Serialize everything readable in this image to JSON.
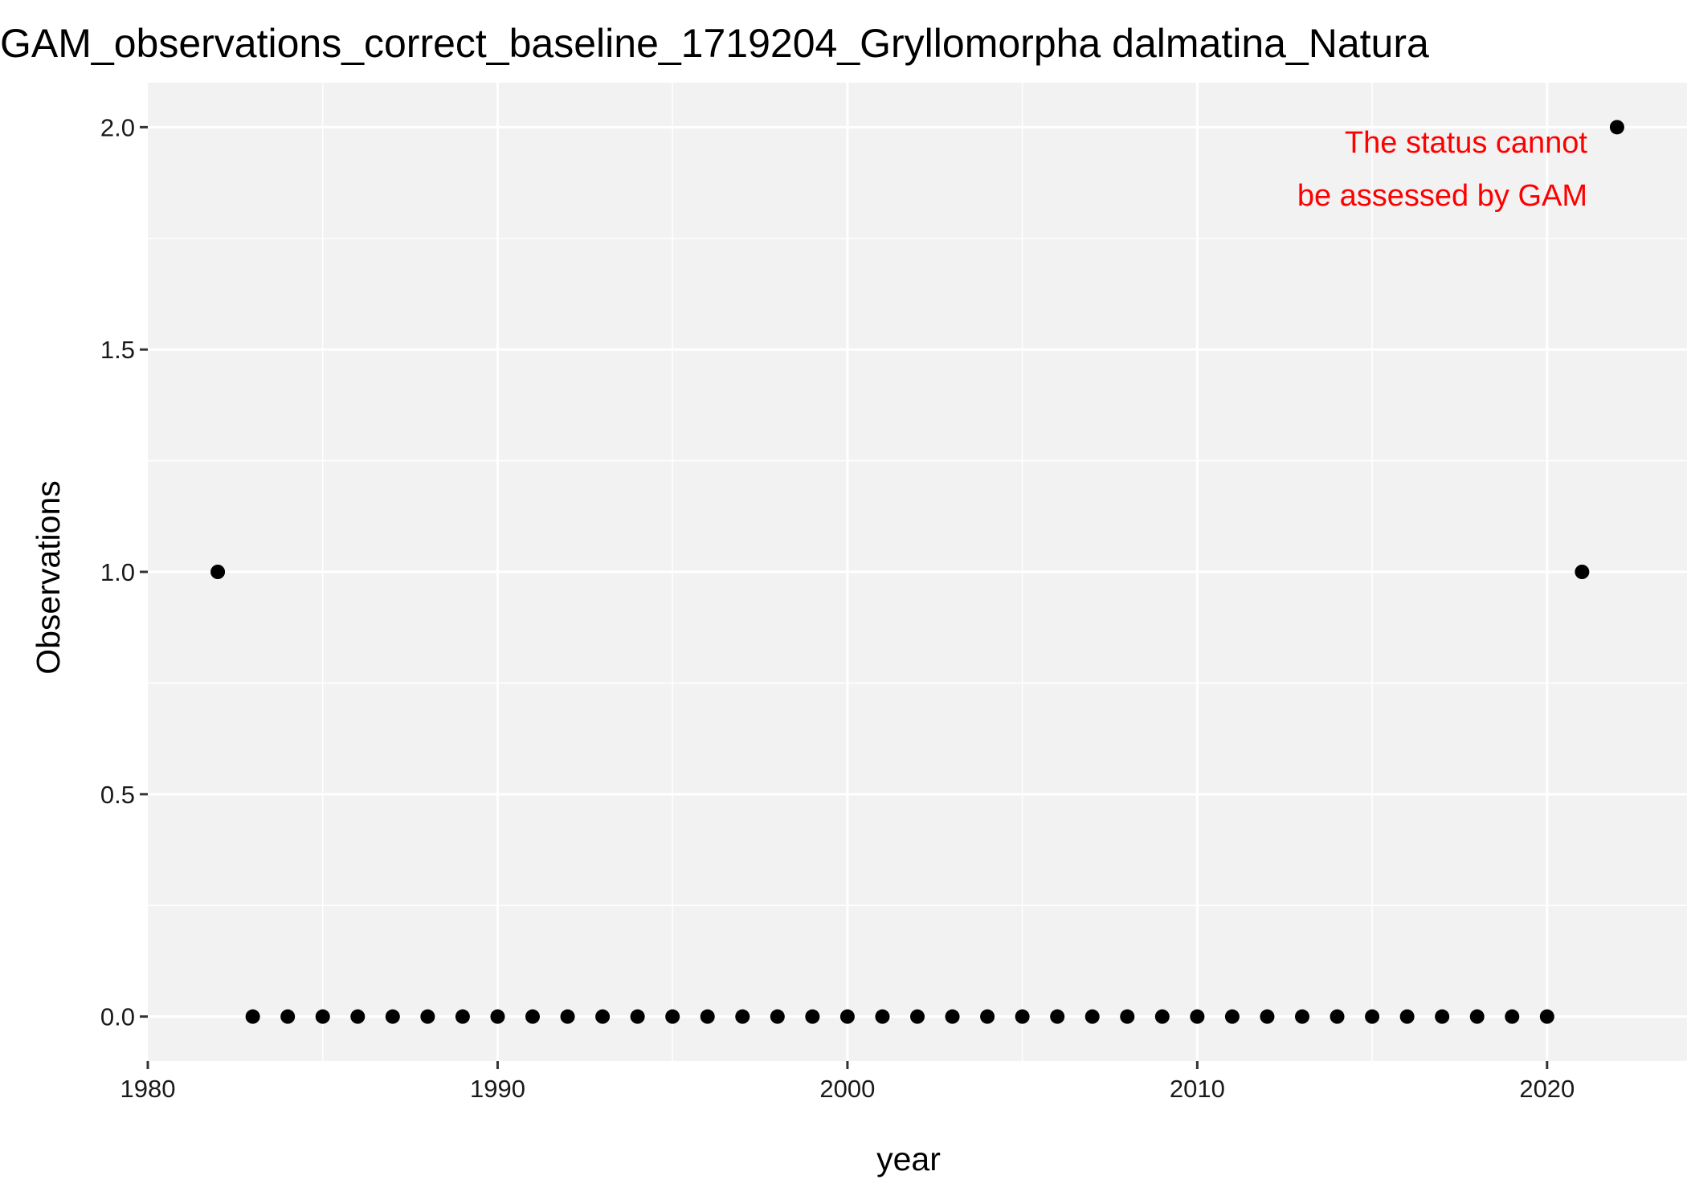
{
  "chart_data": {
    "type": "scatter",
    "title": "GAM_observations_correct_baseline_1719204_Gryllomorpha dalmatina_Natura",
    "xlabel": "year",
    "ylabel": "Observations",
    "xlim": [
      1980,
      2024
    ],
    "ylim": [
      -0.1,
      2.1
    ],
    "x_ticks": [
      1980,
      1990,
      2000,
      2010,
      2020
    ],
    "x_tick_labels": [
      "1980",
      "1990",
      "2000",
      "2010",
      "2020"
    ],
    "y_ticks": [
      0.0,
      0.5,
      1.0,
      1.5,
      2.0
    ],
    "y_tick_labels": [
      "0.0",
      "0.5",
      "1.0",
      "1.5",
      "2.0"
    ],
    "grid": true,
    "legend": "none",
    "series": [
      {
        "x": [
          1982,
          1983,
          1984,
          1985,
          1986,
          1987,
          1988,
          1989,
          1990,
          1991,
          1992,
          1993,
          1994,
          1995,
          1996,
          1997,
          1998,
          1999,
          2000,
          2001,
          2002,
          2003,
          2004,
          2005,
          2006,
          2007,
          2008,
          2009,
          2010,
          2011,
          2012,
          2013,
          2014,
          2015,
          2016,
          2017,
          2018,
          2019,
          2020,
          2021,
          2022
        ],
        "y": [
          1,
          0,
          0,
          0,
          0,
          0,
          0,
          0,
          0,
          0,
          0,
          0,
          0,
          0,
          0,
          0,
          0,
          0,
          0,
          0,
          0,
          0,
          0,
          0,
          0,
          0,
          0,
          0,
          0,
          0,
          0,
          0,
          0,
          0,
          0,
          0,
          0,
          0,
          0,
          1,
          2
        ]
      }
    ],
    "annotation": {
      "lines": [
        "The status cannot",
        "be assessed by GAM"
      ],
      "color": "#ff0000"
    },
    "colors": {
      "panel_background": "#f2f2f2",
      "grid": "#ffffff",
      "points": "#000000"
    }
  }
}
